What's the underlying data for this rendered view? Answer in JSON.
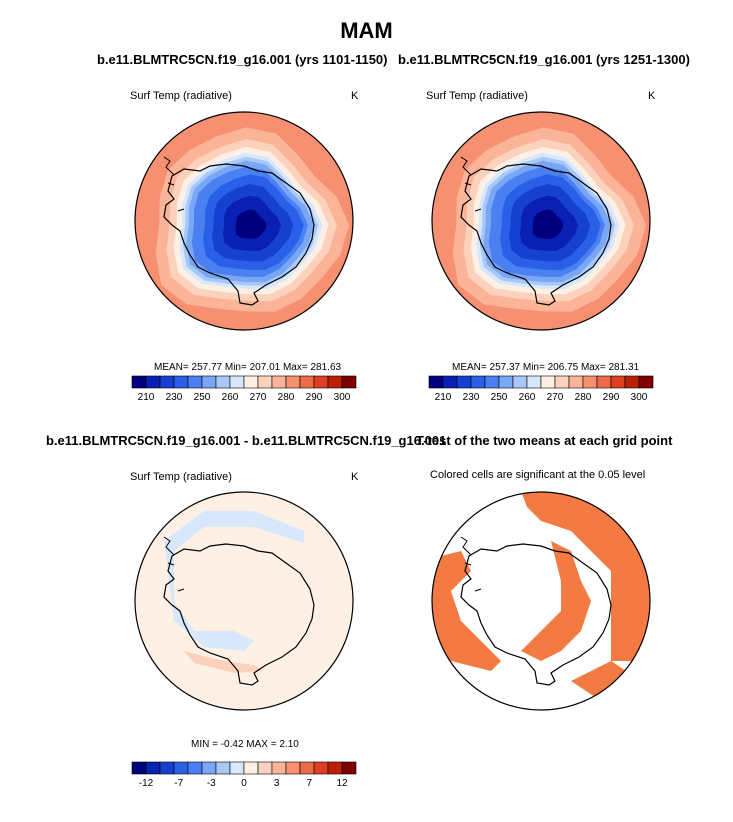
{
  "title": "MAM",
  "panels": [
    {
      "title": "b.e11.BLMTRC5CN.f19_g16.001 (yrs 1101-1150)",
      "var_label": "Surf Temp (radiative)",
      "units": "K",
      "stats": "MEAN= 257.77  Min= 207.01  Max= 281.63"
    },
    {
      "title": "b.e11.BLMTRC5CN.f19_g16.001 (yrs 1251-1300)",
      "var_label": "Surf Temp (radiative)",
      "units": "K",
      "stats": "MEAN= 257.37  Min= 206.75  Max= 281.31"
    },
    {
      "title": "b.e11.BLMTRC5CN.f19_g16.001 - b.e11.BLMTRC5CN.f19_g16.001",
      "var_label": "Surf Temp (radiative)",
      "units": "K",
      "stats": "MIN =  -0.42  MAX =   2.10"
    },
    {
      "title": "T-test of the two means at each grid point",
      "var_label": "Colored cells are significant at the 0.05 level"
    }
  ],
  "chart_data": [
    {
      "type": "heatmap",
      "projection": "south-polar-stereographic",
      "title": "b.e11.BLMTRC5CN.f19_g16.001 (yrs 1101-1150)",
      "variable": "Surf Temp (radiative)",
      "units": "K",
      "mean": 257.77,
      "min": 207.01,
      "max": 281.63,
      "colorbar_ticks": [
        "210",
        "230",
        "250",
        "260",
        "270",
        "280",
        "290",
        "300"
      ],
      "colorbar_colors": [
        "#00007f",
        "#0a1fb4",
        "#1540d0",
        "#2a60e8",
        "#4a80f2",
        "#7aa6f6",
        "#a8c8fa",
        "#d8e8fc",
        "#fff0e6",
        "#fdd2bc",
        "#fbb498",
        "#f69070",
        "#ee6a48",
        "#dc4020",
        "#bc2008",
        "#7f0000"
      ]
    },
    {
      "type": "heatmap",
      "projection": "south-polar-stereographic",
      "title": "b.e11.BLMTRC5CN.f19_g16.001 (yrs 1251-1300)",
      "variable": "Surf Temp (radiative)",
      "units": "K",
      "mean": 257.37,
      "min": 206.75,
      "max": 281.31,
      "colorbar_ticks": [
        "210",
        "230",
        "250",
        "260",
        "270",
        "280",
        "290",
        "300"
      ],
      "colorbar_colors": [
        "#00007f",
        "#0a1fb4",
        "#1540d0",
        "#2a60e8",
        "#4a80f2",
        "#7aa6f6",
        "#a8c8fa",
        "#d8e8fc",
        "#fff0e6",
        "#fdd2bc",
        "#fbb498",
        "#f69070",
        "#ee6a48",
        "#dc4020",
        "#bc2008",
        "#7f0000"
      ]
    },
    {
      "type": "heatmap",
      "projection": "south-polar-stereographic",
      "title": "b.e11.BLMTRC5CN.f19_g16.001 - b.e11.BLMTRC5CN.f19_g16.001",
      "variable": "Surf Temp (radiative)",
      "units": "K",
      "min": -0.42,
      "max": 2.1,
      "colorbar_ticks": [
        "-12",
        "-7",
        "-3",
        "0",
        "3",
        "7",
        "12"
      ],
      "colorbar_colors": [
        "#00007f",
        "#0a1fb4",
        "#1540d0",
        "#2a60e8",
        "#4a80f2",
        "#7aa6f6",
        "#a8c8fa",
        "#d8e8fc",
        "#fff0e6",
        "#fdd2bc",
        "#fbb498",
        "#f69070",
        "#ee6a48",
        "#dc4020",
        "#bc2008",
        "#7f0000"
      ]
    },
    {
      "type": "heatmap",
      "projection": "south-polar-stereographic",
      "title": "T-test of the two means at each grid point",
      "note": "Colored cells are significant at the 0.05 level",
      "significance_level": 0.05,
      "significant_color": "#f47a44"
    }
  ]
}
